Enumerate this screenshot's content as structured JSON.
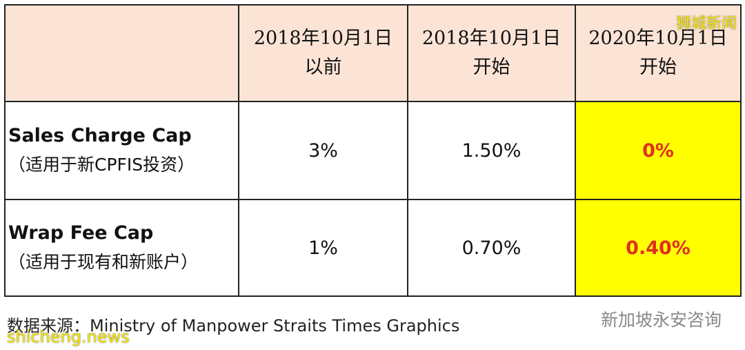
{
  "table": {
    "header": [
      {
        "line1": "2018年10月1日",
        "line2": "以前"
      },
      {
        "line1": "2018年10月1日",
        "line2": "开始"
      },
      {
        "line1": "2020年10月1日",
        "line2": "开始"
      }
    ],
    "rows": [
      {
        "name": "Sales Charge Cap",
        "note": "（适用于新CPFIS投资）",
        "cells": [
          "3%",
          "1.50%",
          "0%"
        ]
      },
      {
        "name": "Wrap Fee Cap",
        "note": "（适用于现有和新账户）",
        "cells": [
          "1%",
          "0.70%",
          "0.40%"
        ]
      }
    ]
  },
  "source": "数据来源：Ministry of Manpower Straits Times Graphics",
  "watermarks": {
    "top_right": "狮城新闻",
    "bottom_right": "新加坡永安咨询",
    "bottom_left": "shicheng.news"
  }
}
